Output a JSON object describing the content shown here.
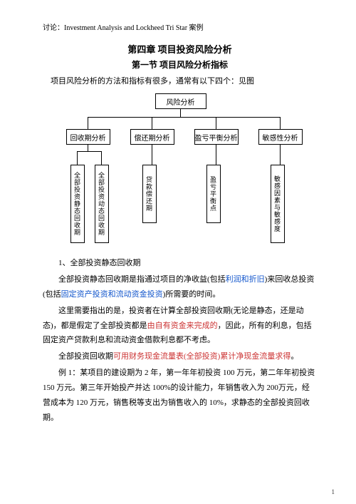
{
  "discuss": "讨论：Investment Analysis and Lockheed Tri Star 案例",
  "chapter": "第四章 项目投资风险分析",
  "section": "第一节 项目风险分析指标",
  "intro": "项目风险分析的方法和指标有很多，通常有以下四个：见图",
  "diagram": {
    "root": "风险分析",
    "mids": [
      "回收期分析",
      "偿还期分析",
      "盈亏平衡分析",
      "敏感性分析"
    ],
    "leaves": [
      "全部投资静态回收期",
      "全部投资动态回收期",
      "贷款偿还期",
      "盈亏平衡点",
      "敏感因素与敏感度"
    ],
    "mid_x": [
      20,
      110,
      200,
      290
    ],
    "leaf_x": [
      26,
      60,
      127,
      217,
      307
    ],
    "leaf_h": [
      100,
      100,
      72,
      72,
      100
    ]
  },
  "subhead": "1、全部投资静态回收期",
  "p1a": "全部投资静态回收期是指通过项目的净收益(包括",
  "p1b": "利润和折旧",
  "p1c": ")来回收总投资(包括",
  "p1d": "固定资产投资和流动资金投资",
  "p1e": ")所需要的时间。",
  "p2a": "这里需要指出的是，投资者在计算全部投资回收期(无论是静态，还是动态)，都是假定了全部投资都是",
  "p2b": "由自有资金来完成的",
  "p2c": "，因此，所有的利息，包括固定资产贷款利息和流动资金借款利息都不考虑。",
  "p3a": "全部投资回收期",
  "p3b": "可用财务现金流量表(全部投资)累计净现金流量求得",
  "p3c": "。",
  "p4": "例 1：某项目的建设期为 2 年，第一年年初投资 100 万元，第二年年初投资 150 万元。第三年开始投产并达 100%的设计能力，年销售收入为 200万元，经营成本为 120 万元，销售税等支出为销售收入的 10%，求静态的全部投资回收期。",
  "page_num": "1"
}
